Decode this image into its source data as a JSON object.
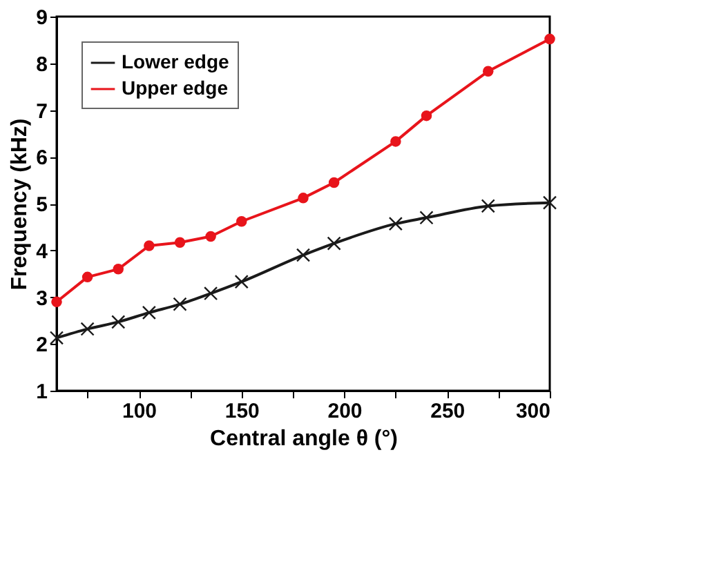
{
  "chart_data": {
    "type": "line",
    "xlabel": "Central angle θ (°)",
    "ylabel": "Frequency (kHz)",
    "x": [
      60,
      75,
      90,
      105,
      120,
      135,
      150,
      180,
      195,
      225,
      240,
      270,
      300
    ],
    "series": [
      {
        "name": "Lower edge",
        "color": "#1a1a1a",
        "marker": "cross",
        "values": [
          2.13,
          2.32,
          2.47,
          2.67,
          2.85,
          3.08,
          3.33,
          3.9,
          4.15,
          4.57,
          4.7,
          4.95,
          5.02
        ]
      },
      {
        "name": "Upper edge",
        "color": "#e8141b",
        "marker": "circle",
        "values": [
          2.9,
          3.43,
          3.6,
          4.1,
          4.17,
          4.3,
          4.62,
          5.12,
          5.45,
          6.33,
          6.88,
          7.83,
          8.52
        ]
      }
    ],
    "xlim": [
      60,
      300
    ],
    "xticks": [
      {
        "value": 75,
        "label": null
      },
      100,
      {
        "value": 125,
        "label": null
      },
      150,
      {
        "value": 175,
        "label": null
      },
      200,
      {
        "value": 225,
        "label": null
      },
      250,
      {
        "value": 275,
        "label": null
      },
      300
    ],
    "ylim": [
      1,
      9
    ],
    "yticks": [
      1,
      2,
      3,
      4,
      5,
      6,
      7,
      8,
      9
    ],
    "grid": false,
    "legend": "top left",
    "line_style": "solid"
  }
}
